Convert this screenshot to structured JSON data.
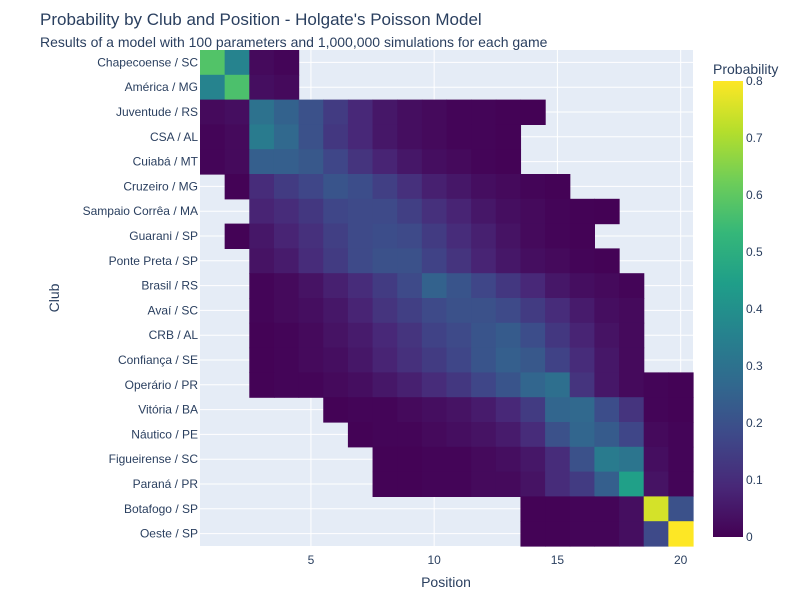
{
  "chart_data": {
    "type": "heatmap",
    "title": "Probability by Club and Position - Holgate's Poisson Model",
    "subtitle": "Results of a model with 100 parameters and 1,000,000 simulations for each game",
    "xlabel": "Position",
    "ylabel": "Club",
    "x": [
      1,
      2,
      3,
      4,
      5,
      6,
      7,
      8,
      9,
      10,
      11,
      12,
      13,
      14,
      15,
      16,
      17,
      18,
      19,
      20
    ],
    "x_ticks": [
      5,
      10,
      15,
      20
    ],
    "colorbar_title": "Probability",
    "colorbar_range": [
      0,
      0.8
    ],
    "colorbar_ticks": [
      0,
      0.1,
      0.2,
      0.3,
      0.4,
      0.5,
      0.6,
      0.7,
      0.8
    ],
    "colorscale": "Viridis",
    "background_color": "#e5ecf6",
    "clubs": [
      "Chapecoense / SC",
      "América / MG",
      "Juventude / RS",
      "CSA / AL",
      "Cuiabá / MT",
      "Cruzeiro / MG",
      "Sampaio Corrêa / MA",
      "Guarani / SP",
      "Ponte Preta / SP",
      "Brasil / RS",
      "Avaí / SC",
      "CRB / AL",
      "Confiança / SE",
      "Operário / PR",
      "Vitória / BA",
      "Náutico / PE",
      "Figueirense / SC",
      "Paraná / PR",
      "Botafogo / SP",
      "Oeste / SP"
    ],
    "z": [
      [
        0.58,
        0.36,
        0.02,
        0.01,
        null,
        null,
        null,
        null,
        null,
        null,
        null,
        null,
        null,
        null,
        null,
        null,
        null,
        null,
        null,
        null
      ],
      [
        0.36,
        0.57,
        0.03,
        0.02,
        null,
        null,
        null,
        null,
        null,
        null,
        null,
        null,
        null,
        null,
        null,
        null,
        null,
        null,
        null,
        null
      ],
      [
        0.02,
        0.03,
        0.3,
        0.25,
        0.2,
        0.14,
        0.09,
        0.05,
        0.03,
        0.02,
        0.01,
        0.01,
        0.005,
        0.002,
        null,
        null,
        null,
        null,
        null,
        null
      ],
      [
        0.01,
        0.02,
        0.33,
        0.27,
        0.2,
        0.13,
        0.09,
        0.05,
        0.03,
        0.02,
        0.01,
        0.01,
        0.005,
        null,
        null,
        null,
        null,
        null,
        null,
        null
      ],
      [
        0.01,
        0.02,
        0.24,
        0.24,
        0.22,
        0.17,
        0.12,
        0.08,
        0.05,
        0.03,
        0.02,
        0.01,
        0.005,
        null,
        null,
        null,
        null,
        null,
        null,
        null
      ],
      [
        null,
        0.005,
        0.1,
        0.14,
        0.17,
        0.21,
        0.19,
        0.15,
        0.11,
        0.07,
        0.05,
        0.03,
        0.02,
        0.01,
        0.005,
        null,
        null,
        null,
        null,
        null
      ],
      [
        null,
        null,
        0.08,
        0.1,
        0.13,
        0.17,
        0.18,
        0.18,
        0.15,
        0.11,
        0.08,
        0.05,
        0.03,
        0.02,
        0.01,
        0.005,
        0.002,
        null,
        null,
        null
      ],
      [
        null,
        0.005,
        0.05,
        0.08,
        0.11,
        0.15,
        0.18,
        0.19,
        0.18,
        0.14,
        0.1,
        0.07,
        0.04,
        0.02,
        0.01,
        0.005,
        null,
        null,
        null,
        null
      ],
      [
        null,
        null,
        0.04,
        0.06,
        0.1,
        0.14,
        0.18,
        0.2,
        0.2,
        0.16,
        0.12,
        0.08,
        0.05,
        0.03,
        0.02,
        0.01,
        0.005,
        null,
        null,
        null
      ],
      [
        null,
        null,
        0.01,
        0.02,
        0.04,
        0.07,
        0.1,
        0.14,
        0.18,
        0.25,
        0.21,
        0.17,
        0.13,
        0.09,
        0.05,
        0.03,
        0.02,
        0.01,
        null,
        null
      ],
      [
        null,
        null,
        0.01,
        0.02,
        0.03,
        0.05,
        0.08,
        0.12,
        0.15,
        0.18,
        0.2,
        0.2,
        0.18,
        0.14,
        0.1,
        0.06,
        0.03,
        0.02,
        null,
        null
      ],
      [
        null,
        null,
        0.005,
        0.01,
        0.02,
        0.04,
        0.06,
        0.09,
        0.12,
        0.16,
        0.18,
        0.21,
        0.23,
        0.19,
        0.13,
        0.08,
        0.04,
        0.02,
        null,
        null
      ],
      [
        null,
        null,
        0.005,
        0.01,
        0.02,
        0.03,
        0.05,
        0.08,
        0.11,
        0.14,
        0.17,
        0.21,
        0.24,
        0.22,
        0.16,
        0.1,
        0.05,
        0.02,
        null,
        null
      ],
      [
        null,
        null,
        0.005,
        0.01,
        0.01,
        0.02,
        0.03,
        0.05,
        0.07,
        0.1,
        0.13,
        0.17,
        0.21,
        0.26,
        0.29,
        0.12,
        0.05,
        0.02,
        0.01,
        0.005
      ],
      [
        null,
        null,
        null,
        null,
        null,
        0.005,
        0.01,
        0.01,
        0.02,
        0.03,
        0.04,
        0.06,
        0.09,
        0.14,
        0.26,
        0.27,
        0.19,
        0.12,
        0.01,
        0.005
      ],
      [
        null,
        null,
        null,
        null,
        null,
        null,
        0.005,
        0.01,
        0.01,
        0.02,
        0.03,
        0.04,
        0.06,
        0.1,
        0.2,
        0.26,
        0.23,
        0.17,
        0.02,
        0.01
      ],
      [
        null,
        null,
        null,
        null,
        null,
        null,
        null,
        0.005,
        0.005,
        0.01,
        0.01,
        0.02,
        0.03,
        0.05,
        0.1,
        0.2,
        0.33,
        0.31,
        0.03,
        0.01
      ],
      [
        null,
        null,
        null,
        null,
        null,
        null,
        null,
        0.005,
        0.005,
        0.01,
        0.01,
        0.02,
        0.02,
        0.04,
        0.1,
        0.14,
        0.24,
        0.45,
        0.04,
        0.01
      ],
      [
        null,
        null,
        null,
        null,
        null,
        null,
        null,
        null,
        null,
        null,
        null,
        null,
        null,
        0.005,
        0.005,
        0.01,
        0.01,
        0.03,
        0.75,
        0.2
      ],
      [
        null,
        null,
        null,
        null,
        null,
        null,
        null,
        null,
        null,
        null,
        null,
        null,
        null,
        0.005,
        0.005,
        0.01,
        0.01,
        0.03,
        0.18,
        0.8
      ]
    ]
  }
}
